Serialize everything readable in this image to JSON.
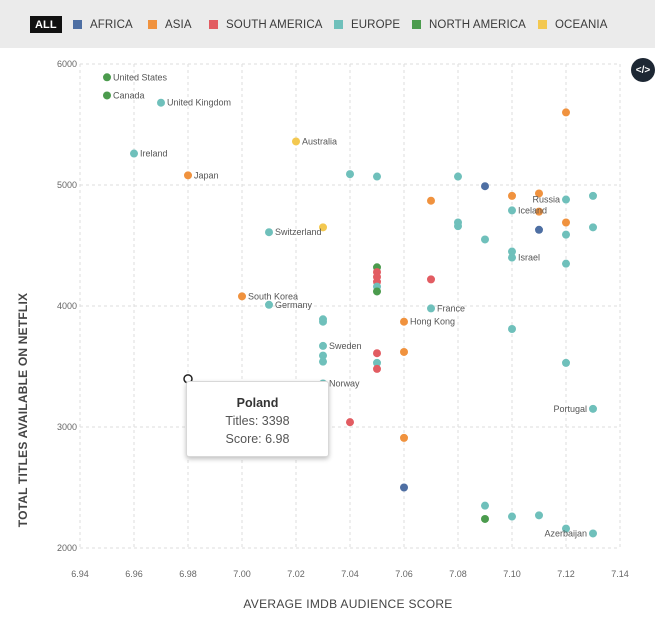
{
  "filters": [
    {
      "id": "all",
      "label": "ALL",
      "color": "#111111",
      "active": true
    },
    {
      "id": "africa",
      "label": "AFRICA",
      "color": "#4e6fa3"
    },
    {
      "id": "asia",
      "label": "ASIA",
      "color": "#f0923e"
    },
    {
      "id": "south_america",
      "label": "SOUTH AMERICA",
      "color": "#e25c62"
    },
    {
      "id": "europe",
      "label": "EUROPE",
      "color": "#6fc0bb"
    },
    {
      "id": "north_america",
      "label": "NORTH AMERICA",
      "color": "#4b9b4d"
    },
    {
      "id": "oceania",
      "label": "OCEANIA",
      "color": "#f3c850"
    }
  ],
  "embed_icon": "code-embed-icon",
  "embed_label": "</>",
  "chart_data": {
    "type": "scatter",
    "xlabel": "AVERAGE IMDB AUDIENCE SCORE",
    "ylabel": "TOTAL TITLES AVAILABLE ON NETFLIX",
    "xlim": [
      6.94,
      7.14
    ],
    "ylim": [
      2000,
      6000
    ],
    "xticks": [
      "6.94",
      "6.96",
      "6.98",
      "7.00",
      "7.02",
      "7.04",
      "7.06",
      "7.08",
      "7.10",
      "7.12",
      "7.14"
    ],
    "yticks": [
      "2000",
      "3000",
      "4000",
      "5000",
      "6000"
    ],
    "grid": true,
    "region_colors": {
      "africa": "#4e6fa3",
      "asia": "#f0923e",
      "south_america": "#e25c62",
      "europe": "#6fc0bb",
      "north_america": "#4b9b4d",
      "oceania": "#f3c850"
    },
    "points": [
      {
        "x": 6.95,
        "y": 5890,
        "region": "north_america",
        "label": "United States"
      },
      {
        "x": 6.95,
        "y": 5740,
        "region": "north_america",
        "label": "Canada"
      },
      {
        "x": 6.97,
        "y": 5680,
        "region": "europe",
        "label": "United Kingdom"
      },
      {
        "x": 7.02,
        "y": 5360,
        "region": "oceania",
        "label": "Australia"
      },
      {
        "x": 6.96,
        "y": 5260,
        "region": "europe",
        "label": "Ireland"
      },
      {
        "x": 6.98,
        "y": 5080,
        "region": "asia",
        "label": "Japan"
      },
      {
        "x": 7.01,
        "y": 4610,
        "region": "europe",
        "label": "Switzerland"
      },
      {
        "x": 7.0,
        "y": 4080,
        "region": "asia",
        "label": "South Korea"
      },
      {
        "x": 7.01,
        "y": 4010,
        "region": "europe",
        "label": "Germany"
      },
      {
        "x": 7.12,
        "y": 4880,
        "region": "europe",
        "label": "Russia"
      },
      {
        "x": 7.1,
        "y": 4790,
        "region": "europe",
        "label": "Iceland"
      },
      {
        "x": 7.1,
        "y": 4400,
        "region": "europe",
        "label": "Israel"
      },
      {
        "x": 7.07,
        "y": 3980,
        "region": "europe",
        "label": "France"
      },
      {
        "x": 7.06,
        "y": 3870,
        "region": "asia",
        "label": "Hong Kong"
      },
      {
        "x": 7.03,
        "y": 3670,
        "region": "europe",
        "label": "Sweden"
      },
      {
        "x": 7.03,
        "y": 3360,
        "region": "europe",
        "label": "Norway"
      },
      {
        "x": 7.13,
        "y": 3150,
        "region": "europe",
        "label": "Portugal"
      },
      {
        "x": 7.13,
        "y": 2120,
        "region": "europe",
        "label": "Azerbaijan"
      },
      {
        "x": 7.12,
        "y": 5600,
        "region": "asia",
        "label": ""
      },
      {
        "x": 7.04,
        "y": 5090,
        "region": "europe",
        "label": ""
      },
      {
        "x": 7.05,
        "y": 5070,
        "region": "europe",
        "label": ""
      },
      {
        "x": 7.08,
        "y": 5070,
        "region": "europe",
        "label": ""
      },
      {
        "x": 7.09,
        "y": 4990,
        "region": "africa",
        "label": ""
      },
      {
        "x": 7.1,
        "y": 4910,
        "region": "asia",
        "label": ""
      },
      {
        "x": 7.11,
        "y": 4930,
        "region": "asia",
        "label": ""
      },
      {
        "x": 7.13,
        "y": 4910,
        "region": "europe",
        "label": ""
      },
      {
        "x": 7.07,
        "y": 4870,
        "region": "asia",
        "label": ""
      },
      {
        "x": 7.11,
        "y": 4780,
        "region": "asia",
        "label": ""
      },
      {
        "x": 7.12,
        "y": 4690,
        "region": "asia",
        "label": ""
      },
      {
        "x": 7.08,
        "y": 4690,
        "region": "europe",
        "label": ""
      },
      {
        "x": 7.08,
        "y": 4660,
        "region": "europe",
        "label": ""
      },
      {
        "x": 7.03,
        "y": 4650,
        "region": "oceania",
        "label": ""
      },
      {
        "x": 7.13,
        "y": 4650,
        "region": "europe",
        "label": ""
      },
      {
        "x": 7.11,
        "y": 4630,
        "region": "africa",
        "label": ""
      },
      {
        "x": 7.12,
        "y": 4590,
        "region": "europe",
        "label": ""
      },
      {
        "x": 7.09,
        "y": 4550,
        "region": "europe",
        "label": ""
      },
      {
        "x": 7.1,
        "y": 4450,
        "region": "europe",
        "label": ""
      },
      {
        "x": 7.12,
        "y": 4350,
        "region": "europe",
        "label": ""
      },
      {
        "x": 7.05,
        "y": 4320,
        "region": "north_america",
        "label": ""
      },
      {
        "x": 7.05,
        "y": 4280,
        "region": "south_america",
        "label": ""
      },
      {
        "x": 7.05,
        "y": 4240,
        "region": "south_america",
        "label": ""
      },
      {
        "x": 7.07,
        "y": 4220,
        "region": "south_america",
        "label": ""
      },
      {
        "x": 7.05,
        "y": 4200,
        "region": "south_america",
        "label": ""
      },
      {
        "x": 7.05,
        "y": 4160,
        "region": "europe",
        "label": ""
      },
      {
        "x": 7.05,
        "y": 4120,
        "region": "north_america",
        "label": ""
      },
      {
        "x": 7.03,
        "y": 3890,
        "region": "europe",
        "label": ""
      },
      {
        "x": 7.03,
        "y": 3870,
        "region": "europe",
        "label": ""
      },
      {
        "x": 7.1,
        "y": 3810,
        "region": "europe",
        "label": ""
      },
      {
        "x": 7.06,
        "y": 3620,
        "region": "asia",
        "label": ""
      },
      {
        "x": 7.05,
        "y": 3610,
        "region": "south_america",
        "label": ""
      },
      {
        "x": 7.03,
        "y": 3590,
        "region": "europe",
        "label": ""
      },
      {
        "x": 7.03,
        "y": 3540,
        "region": "europe",
        "label": ""
      },
      {
        "x": 7.05,
        "y": 3530,
        "region": "europe",
        "label": ""
      },
      {
        "x": 7.12,
        "y": 3530,
        "region": "europe",
        "label": ""
      },
      {
        "x": 7.05,
        "y": 3480,
        "region": "south_america",
        "label": ""
      },
      {
        "x": 7.04,
        "y": 3040,
        "region": "south_america",
        "label": ""
      },
      {
        "x": 7.06,
        "y": 2910,
        "region": "asia",
        "label": ""
      },
      {
        "x": 7.06,
        "y": 2500,
        "region": "africa",
        "label": ""
      },
      {
        "x": 7.09,
        "y": 2350,
        "region": "europe",
        "label": ""
      },
      {
        "x": 7.1,
        "y": 2260,
        "region": "europe",
        "label": ""
      },
      {
        "x": 7.11,
        "y": 2270,
        "region": "europe",
        "label": ""
      },
      {
        "x": 7.09,
        "y": 2240,
        "region": "north_america",
        "label": ""
      },
      {
        "x": 7.12,
        "y": 2160,
        "region": "europe",
        "label": ""
      }
    ],
    "highlighted": {
      "x": 6.98,
      "y": 3398,
      "label": "Poland"
    }
  },
  "tooltip": {
    "title": "Poland",
    "titles_line": "Titles: 3398",
    "score_line": "Score: 6.98"
  }
}
